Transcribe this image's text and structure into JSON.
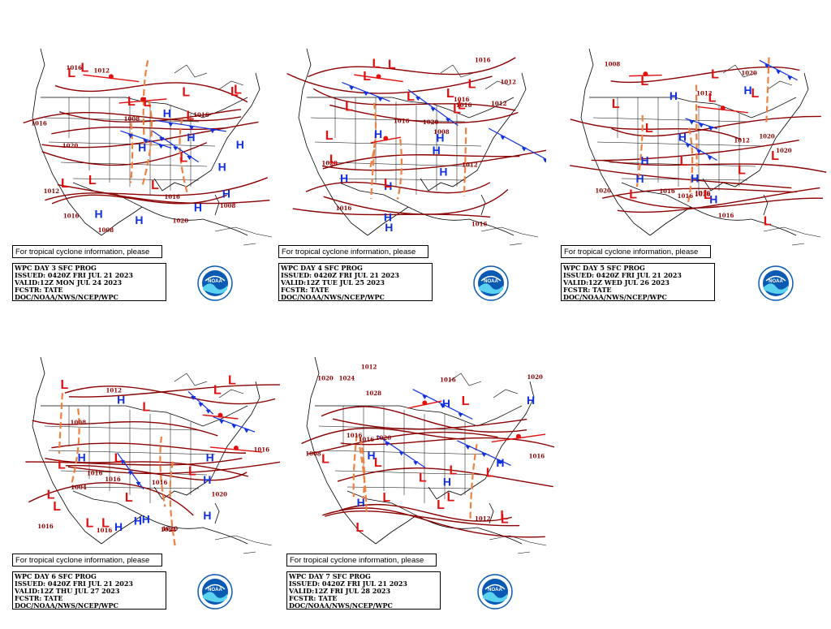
{
  "panels": [
    {
      "id": "day3",
      "tc_note": "For tropical cyclone information, please see the NHC",
      "title": "WPC DAY 3 SFC PROG",
      "issued": "ISSUED: 0420Z FRI JUL 21 2023",
      "valid": "VALID:12Z MON JUL 24 2023",
      "fcstr": "FCSTR: TATE",
      "org": "DOC/NOAA/NWS/NCEP/WPC",
      "isobar_labels": [
        "1008",
        "1008",
        "1008",
        "1012",
        "1016",
        "1020",
        "1016",
        "1020",
        "1012",
        "1016",
        "1016",
        "1016"
      ],
      "highs": [
        "H",
        "H",
        "H",
        "H",
        "H",
        "H",
        "H",
        "H",
        "H"
      ],
      "lows": [
        "L",
        "L",
        "L",
        "L",
        "L",
        "L",
        "L",
        "L",
        "L",
        "L",
        "L",
        "L"
      ]
    },
    {
      "id": "day4",
      "tc_note": "For tropical cyclone information, please see the NHC",
      "title": "WPC DAY 4 SFC PROG",
      "issued": "ISSUED: 0420Z FRI JUL 21 2023",
      "valid": "VALID:12Z TUE JUL 25 2023",
      "fcstr": "FCSTR: TATE",
      "org": "DOC/NOAA/NWS/NCEP/WPC",
      "isobar_labels": [
        "1012",
        "1016",
        "1008",
        "1012",
        "1020",
        "1016",
        "1016",
        "1012",
        "1016",
        "1020",
        "1016",
        "1016"
      ],
      "highs": [
        "H",
        "H",
        "H",
        "H",
        "H",
        "H",
        "H",
        "H"
      ],
      "lows": [
        "L",
        "L",
        "L",
        "L",
        "L",
        "L",
        "L",
        "L",
        "L",
        "L",
        "L",
        "L"
      ]
    },
    {
      "id": "day5",
      "tc_note": "For tropical cyclone information, please see the NHC",
      "title": "WPC DAY 5 SFC PROG",
      "issued": "ISSUED: 0420Z FRI JUL 21 2023",
      "valid": "VALID:12Z WED JUL 26 2023",
      "fcstr": "FCSTR: TATE",
      "org": "DOC/NOAA/NWS/NCEP/WPC",
      "isobar_labels": [
        "1020",
        "1008",
        "1020",
        "1016",
        "1020",
        "1016",
        "1012",
        "1016",
        "1016",
        "1020",
        "1012",
        "1016"
      ],
      "highs": [
        "H",
        "H",
        "H",
        "H",
        "H",
        "H",
        "H"
      ],
      "lows": [
        "L",
        "L",
        "L",
        "L",
        "L",
        "L",
        "L",
        "L",
        "L",
        "L",
        "L",
        "L"
      ]
    },
    {
      "id": "day6",
      "tc_note": "For tropical cyclone information, please see the NHC",
      "title": "WPC DAY 6 SFC PROG",
      "issued": "ISSUED: 0420Z FRI JUL 21 2023",
      "valid": "VALID:12Z THU JUL 27 2023",
      "fcstr": "FCSTR: TATE",
      "org": "DOC/NOAA/NWS/NCEP/WPC",
      "isobar_labels": [
        "1024",
        "1020",
        "1016",
        "1016",
        "1004",
        "1008",
        "1012",
        "1016",
        "1016",
        "1016",
        "1020",
        "1016"
      ],
      "highs": [
        "H",
        "H",
        "H",
        "H",
        "H",
        "H",
        "H",
        "H"
      ],
      "lows": [
        "L",
        "L",
        "L",
        "L",
        "L",
        "L",
        "L",
        "L",
        "L",
        "L",
        "L",
        "L"
      ]
    },
    {
      "id": "day7",
      "tc_note": "For tropical cyclone information, please see the NHC",
      "title": "WPC DAY 7 SFC PROG",
      "issued": "ISSUED: 0420Z FRI JUL 21 2023",
      "valid": "VALID:12Z FRI JUL 28 2023",
      "fcstr": "FCSTR: TATE",
      "org": "DOC/NOAA/NWS/NCEP/WPC",
      "isobar_labels": [
        "1028",
        "1024",
        "1020",
        "1016",
        "1012",
        "1016",
        "1020",
        "1008",
        "1016",
        "1016",
        "1012",
        "1020"
      ],
      "highs": [
        "H",
        "H",
        "H",
        "H",
        "H",
        "H"
      ],
      "lows": [
        "L",
        "L",
        "L",
        "L",
        "L",
        "L",
        "L",
        "L",
        "L",
        "L",
        "L",
        "L"
      ]
    }
  ],
  "colors": {
    "isobar": "#8b0000",
    "trough": "#f08040",
    "high": "#1030e0",
    "low": "#e01010",
    "cold_front": "#1030e0",
    "warm_front": "#e01010",
    "coastline": "#000000",
    "noaa_blue": "#0a5ab4",
    "noaa_light": "#5ad2f0"
  },
  "logo_text": "NOAA"
}
